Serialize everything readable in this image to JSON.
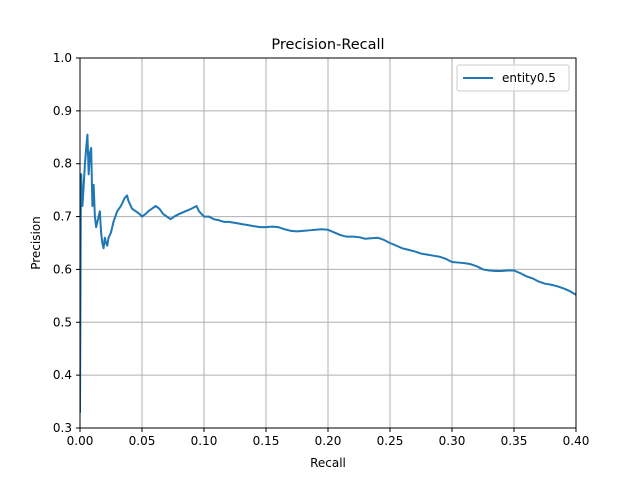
{
  "chart_data": {
    "type": "line",
    "title": "Precision-Recall",
    "xlabel": "Recall",
    "ylabel": "Precision",
    "xlim": [
      0.0,
      0.4
    ],
    "ylim": [
      0.3,
      1.0
    ],
    "x_ticks": [
      "0.00",
      "0.05",
      "0.10",
      "0.15",
      "0.20",
      "0.25",
      "0.30",
      "0.35",
      "0.40"
    ],
    "y_ticks": [
      "0.3",
      "0.4",
      "0.5",
      "0.6",
      "0.7",
      "0.8",
      "0.9",
      "1.0"
    ],
    "grid": true,
    "legend_position": "top-right",
    "series": [
      {
        "name": "entity0.5",
        "color": "#1f77b4",
        "x": [
          0.0,
          0.0003,
          0.0006,
          0.001,
          0.0015,
          0.002,
          0.003,
          0.004,
          0.005,
          0.006,
          0.007,
          0.008,
          0.009,
          0.01,
          0.011,
          0.012,
          0.013,
          0.014,
          0.015,
          0.016,
          0.017,
          0.018,
          0.019,
          0.02,
          0.021,
          0.022,
          0.023,
          0.025,
          0.027,
          0.03,
          0.033,
          0.036,
          0.038,
          0.039,
          0.04,
          0.042,
          0.045,
          0.048,
          0.05,
          0.053,
          0.055,
          0.058,
          0.061,
          0.064,
          0.067,
          0.07,
          0.073,
          0.076,
          0.08,
          0.085,
          0.09,
          0.094,
          0.096,
          0.098,
          0.1,
          0.104,
          0.108,
          0.112,
          0.116,
          0.12,
          0.125,
          0.13,
          0.135,
          0.14,
          0.145,
          0.15,
          0.155,
          0.16,
          0.165,
          0.17,
          0.175,
          0.18,
          0.185,
          0.19,
          0.195,
          0.2,
          0.205,
          0.21,
          0.215,
          0.22,
          0.225,
          0.23,
          0.235,
          0.24,
          0.245,
          0.25,
          0.255,
          0.26,
          0.265,
          0.27,
          0.275,
          0.28,
          0.285,
          0.29,
          0.295,
          0.3,
          0.305,
          0.31,
          0.315,
          0.32,
          0.325,
          0.33,
          0.335,
          0.34,
          0.345,
          0.35,
          0.355,
          0.36,
          0.365,
          0.37,
          0.375,
          0.38,
          0.385,
          0.39,
          0.395,
          0.4
        ],
        "y": [
          0.33,
          0.5,
          0.7,
          0.78,
          0.74,
          0.72,
          0.76,
          0.8,
          0.83,
          0.855,
          0.78,
          0.82,
          0.83,
          0.72,
          0.76,
          0.7,
          0.68,
          0.69,
          0.7,
          0.71,
          0.67,
          0.65,
          0.64,
          0.66,
          0.65,
          0.645,
          0.66,
          0.67,
          0.69,
          0.71,
          0.72,
          0.735,
          0.74,
          0.73,
          0.725,
          0.715,
          0.71,
          0.705,
          0.7,
          0.705,
          0.71,
          0.715,
          0.72,
          0.715,
          0.705,
          0.7,
          0.695,
          0.7,
          0.705,
          0.71,
          0.715,
          0.72,
          0.71,
          0.705,
          0.7,
          0.7,
          0.695,
          0.693,
          0.69,
          0.69,
          0.688,
          0.686,
          0.684,
          0.682,
          0.68,
          0.68,
          0.681,
          0.68,
          0.676,
          0.673,
          0.672,
          0.673,
          0.674,
          0.675,
          0.676,
          0.675,
          0.67,
          0.665,
          0.662,
          0.662,
          0.661,
          0.658,
          0.659,
          0.66,
          0.656,
          0.65,
          0.645,
          0.64,
          0.637,
          0.634,
          0.63,
          0.628,
          0.626,
          0.624,
          0.62,
          0.614,
          0.613,
          0.612,
          0.61,
          0.606,
          0.6,
          0.598,
          0.597,
          0.597,
          0.598,
          0.598,
          0.593,
          0.587,
          0.583,
          0.577,
          0.573,
          0.571,
          0.568,
          0.564,
          0.559,
          0.552
        ]
      }
    ]
  }
}
